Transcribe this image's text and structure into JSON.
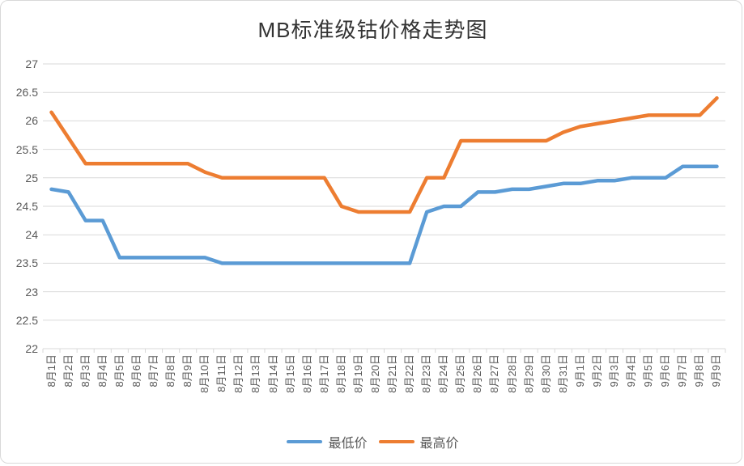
{
  "chart_data": {
    "type": "line",
    "title": "MB标准级钴价格走势图",
    "categories": [
      "8月1日",
      "8月2日",
      "8月3日",
      "8月4日",
      "8月5日",
      "8月6日",
      "8月7日",
      "8月8日",
      "8月9日",
      "8月10日",
      "8月11日",
      "8月12日",
      "8月13日",
      "8月14日",
      "8月15日",
      "8月16日",
      "8月17日",
      "8月18日",
      "8月19日",
      "8月20日",
      "8月21日",
      "8月22日",
      "8月23日",
      "8月24日",
      "8月25日",
      "8月26日",
      "8月27日",
      "8月28日",
      "8月29日",
      "8月30日",
      "8月31日",
      "9月1日",
      "9月2日",
      "9月3日",
      "9月4日",
      "9月5日",
      "9月6日",
      "9月7日",
      "9月8日",
      "9月9日"
    ],
    "series": [
      {
        "name": "最低价",
        "color": "#5B9BD5",
        "values": [
          24.8,
          24.75,
          24.25,
          24.25,
          23.6,
          23.6,
          23.6,
          23.6,
          23.6,
          23.6,
          23.5,
          23.5,
          23.5,
          23.5,
          23.5,
          23.5,
          23.5,
          23.5,
          23.5,
          23.5,
          23.5,
          23.5,
          24.4,
          24.5,
          24.5,
          24.75,
          24.75,
          24.8,
          24.8,
          24.85,
          24.9,
          24.9,
          24.95,
          24.95,
          25,
          25,
          25,
          25.2,
          25.2,
          25.2
        ]
      },
      {
        "name": "最高价",
        "color": "#ED7D31",
        "values": [
          26.15,
          25.7,
          25.25,
          25.25,
          25.25,
          25.25,
          25.25,
          25.25,
          25.25,
          25.1,
          25,
          25,
          25,
          25,
          25,
          25,
          25,
          24.5,
          24.4,
          24.4,
          24.4,
          24.4,
          25,
          25,
          25.65,
          25.65,
          25.65,
          25.65,
          25.65,
          25.65,
          25.8,
          25.9,
          25.95,
          26,
          26.05,
          26.1,
          26.1,
          26.1,
          26.1,
          26.4
        ]
      }
    ],
    "xlabel": "",
    "ylabel": "",
    "ylim": [
      22,
      27
    ],
    "ytick_step": 0.5,
    "y_tick_labels": [
      "22",
      "22.5",
      "23",
      "23.5",
      "24",
      "24.5",
      "25",
      "25.5",
      "26",
      "26.5",
      "27"
    ],
    "grid": "horizontal",
    "legend_position": "bottom",
    "gridline_color": "#D9D9D9",
    "axis_color": "#D9D9D9",
    "text_color": "#595959",
    "title_color": "#333333"
  }
}
